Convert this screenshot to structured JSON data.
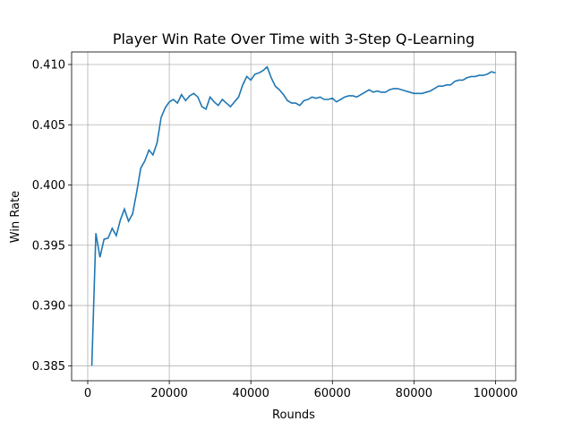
{
  "chart_data": {
    "type": "line",
    "title": "Player Win Rate Over Time with 3-Step Q-Learning",
    "x_label": "Rounds",
    "y_label": "Win Rate",
    "grid": true,
    "x": [
      1000,
      2000,
      3000,
      4000,
      5000,
      6000,
      7000,
      8000,
      9000,
      10000,
      11000,
      12000,
      13000,
      14000,
      15000,
      16000,
      17000,
      18000,
      19000,
      20000,
      21000,
      22000,
      23000,
      24000,
      25000,
      26000,
      27000,
      28000,
      29000,
      30000,
      31000,
      32000,
      33000,
      34000,
      35000,
      36000,
      37000,
      38000,
      39000,
      40000,
      41000,
      42000,
      43000,
      44000,
      45000,
      46000,
      47000,
      48000,
      49000,
      50000,
      51000,
      52000,
      53000,
      54000,
      55000,
      56000,
      57000,
      58000,
      59000,
      60000,
      61000,
      62000,
      63000,
      64000,
      65000,
      66000,
      67000,
      68000,
      69000,
      70000,
      71000,
      72000,
      73000,
      74000,
      75000,
      76000,
      77000,
      78000,
      79000,
      80000,
      81000,
      82000,
      83000,
      84000,
      85000,
      86000,
      87000,
      88000,
      89000,
      90000,
      91000,
      92000,
      93000,
      94000,
      95000,
      96000,
      97000,
      98000,
      99000,
      100000
    ],
    "series": [
      {
        "name": "Win Rate",
        "color": "#1f77b4",
        "values": [
          0.385,
          0.396,
          0.394,
          0.3955,
          0.3956,
          0.3964,
          0.3958,
          0.3971,
          0.398,
          0.397,
          0.3976,
          0.3994,
          0.4014,
          0.402,
          0.4029,
          0.4025,
          0.4035,
          0.4056,
          0.4064,
          0.4069,
          0.4071,
          0.4068,
          0.4075,
          0.407,
          0.4074,
          0.4076,
          0.4073,
          0.4065,
          0.4063,
          0.4073,
          0.4069,
          0.4066,
          0.4071,
          0.4068,
          0.4065,
          0.4069,
          0.4073,
          0.4083,
          0.409,
          0.4087,
          0.4092,
          0.4093,
          0.4095,
          0.4098,
          0.4089,
          0.4082,
          0.4079,
          0.4075,
          0.407,
          0.4068,
          0.4068,
          0.4066,
          0.407,
          0.4071,
          0.4073,
          0.4072,
          0.4073,
          0.4071,
          0.4071,
          0.4072,
          0.4069,
          0.4071,
          0.4073,
          0.4074,
          0.4074,
          0.4073,
          0.4075,
          0.4077,
          0.4079,
          0.4077,
          0.4078,
          0.4077,
          0.4077,
          0.4079,
          0.408,
          0.408,
          0.4079,
          0.4078,
          0.4077,
          0.4076,
          0.4076,
          0.4076,
          0.4077,
          0.4078,
          0.408,
          0.4082,
          0.4082,
          0.4083,
          0.4083,
          0.4086,
          0.4087,
          0.4087,
          0.4089,
          0.409,
          0.409,
          0.4091,
          0.4091,
          0.4092,
          0.4094,
          0.4093
        ]
      }
    ],
    "xlim": [
      -3950,
      104950
    ],
    "ylim": [
      0.38376,
      0.41104
    ],
    "xticks": [
      0,
      20000,
      40000,
      60000,
      80000,
      100000
    ],
    "yticks": [
      0.385,
      {
        "value": 0.39,
        "label": "0.390"
      },
      0.395,
      {
        "value": 0.4,
        "label": "0.400"
      },
      0.405,
      {
        "value": 0.41,
        "label": "0.410"
      }
    ]
  }
}
